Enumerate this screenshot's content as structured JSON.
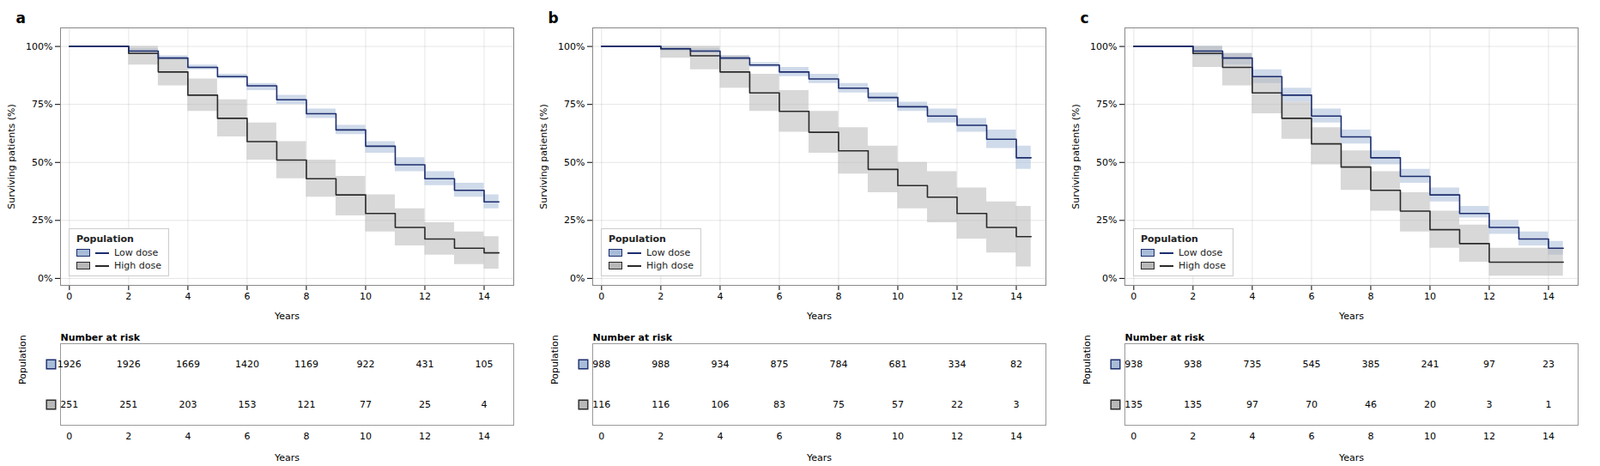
{
  "chart_data": [
    {
      "type": "line",
      "title": "a",
      "xlabel": "Years",
      "ylabel": "Surviving patients (%)",
      "x": [
        0,
        2,
        2,
        3,
        4,
        5,
        6,
        7,
        8,
        9,
        10,
        11,
        12,
        13,
        14,
        14.5
      ],
      "xlim": [
        -0.3,
        15.0
      ],
      "ylim": [
        -3,
        108
      ],
      "xticks": [
        0,
        2,
        4,
        6,
        8,
        10,
        12,
        14
      ],
      "yticks": [
        {
          "value": 0,
          "label": "0%"
        },
        {
          "value": 25,
          "label": "25%"
        },
        {
          "value": 50,
          "label": "50%"
        },
        {
          "value": 75,
          "label": "75%"
        },
        {
          "value": 100,
          "label": "100%"
        }
      ],
      "grid": true,
      "legend": "lower left",
      "legend_title": "Population",
      "series": [
        {
          "name": "Low dose",
          "color": "#1c2d6e",
          "ci_color": "#a8bcd8",
          "values": [
            100,
            100,
            98,
            95,
            91,
            87,
            83,
            77,
            71,
            64,
            57,
            49,
            43,
            38,
            33,
            33
          ],
          "ci_low": [
            100,
            100,
            97,
            94,
            90,
            86,
            81,
            75,
            69,
            62,
            54,
            46,
            40,
            35,
            30,
            30
          ],
          "ci_high": [
            100,
            100,
            99,
            96,
            92,
            88,
            84,
            79,
            73,
            66,
            59,
            52,
            46,
            41,
            36,
            36
          ],
          "at_risk": [
            1926,
            1926,
            1669,
            1420,
            1169,
            922,
            431,
            105
          ]
        },
        {
          "name": "High dose",
          "color": "#2a2a2a",
          "ci_color": "#b8b8b8",
          "values": [
            100,
            100,
            97,
            89,
            79,
            69,
            59,
            51,
            43,
            36,
            28,
            22,
            17,
            13,
            11,
            11
          ],
          "ci_low": [
            100,
            100,
            92,
            83,
            72,
            61,
            51,
            43,
            35,
            27,
            20,
            14,
            10,
            6,
            4,
            4
          ],
          "ci_high": [
            100,
            100,
            100,
            95,
            86,
            77,
            67,
            59,
            51,
            44,
            36,
            30,
            24,
            20,
            18,
            18
          ],
          "at_risk": [
            251,
            251,
            203,
            153,
            121,
            77,
            25,
            4
          ]
        }
      ],
      "at_risk_x": [
        0,
        2,
        4,
        6,
        8,
        10,
        12,
        14
      ],
      "at_risk_title": "Number at risk",
      "at_risk_label": "Population"
    },
    {
      "type": "line",
      "title": "b",
      "xlabel": "Years",
      "ylabel": "Surviving patients (%)",
      "x": [
        0,
        2,
        2,
        3,
        4,
        5,
        6,
        7,
        8,
        9,
        10,
        11,
        12,
        13,
        14,
        14.5
      ],
      "xlim": [
        -0.3,
        15.0
      ],
      "ylim": [
        -3,
        108
      ],
      "xticks": [
        0,
        2,
        4,
        6,
        8,
        10,
        12,
        14
      ],
      "yticks": [
        {
          "value": 0,
          "label": "0%"
        },
        {
          "value": 25,
          "label": "25%"
        },
        {
          "value": 50,
          "label": "50%"
        },
        {
          "value": 75,
          "label": "75%"
        },
        {
          "value": 100,
          "label": "100%"
        }
      ],
      "grid": true,
      "legend": "lower left",
      "legend_title": "Population",
      "series": [
        {
          "name": "Low dose",
          "color": "#1c2d6e",
          "ci_color": "#a8bcd8",
          "values": [
            100,
            100,
            99,
            98,
            95,
            92,
            89,
            86,
            82,
            78,
            74,
            70,
            66,
            60,
            52,
            52
          ],
          "ci_low": [
            100,
            100,
            98,
            97,
            94,
            91,
            87,
            84,
            80,
            76,
            72,
            67,
            63,
            56,
            47,
            47
          ],
          "ci_high": [
            100,
            100,
            100,
            99,
            96,
            93,
            91,
            88,
            84,
            80,
            76,
            73,
            69,
            64,
            57,
            57
          ],
          "at_risk": [
            988,
            988,
            934,
            875,
            784,
            681,
            334,
            82
          ]
        },
        {
          "name": "High dose",
          "color": "#2a2a2a",
          "ci_color": "#b8b8b8",
          "values": [
            100,
            100,
            99,
            96,
            89,
            80,
            72,
            63,
            55,
            47,
            40,
            35,
            28,
            22,
            18,
            18
          ],
          "ci_low": [
            100,
            100,
            95,
            90,
            82,
            72,
            63,
            54,
            45,
            37,
            30,
            24,
            17,
            11,
            5,
            5
          ],
          "ci_high": [
            100,
            100,
            100,
            100,
            96,
            88,
            81,
            72,
            65,
            57,
            50,
            46,
            39,
            33,
            31,
            31
          ],
          "at_risk": [
            116,
            116,
            106,
            83,
            75,
            57,
            22,
            3
          ]
        }
      ],
      "at_risk_x": [
        0,
        2,
        4,
        6,
        8,
        10,
        12,
        14
      ],
      "at_risk_title": "Number at risk",
      "at_risk_label": "Population"
    },
    {
      "type": "line",
      "title": "c",
      "xlabel": "Years",
      "ylabel": "Surviving patients (%)",
      "x": [
        0,
        2,
        2,
        3,
        4,
        5,
        6,
        7,
        8,
        9,
        10,
        11,
        12,
        13,
        14,
        14.5
      ],
      "xlim": [
        -0.3,
        15.0
      ],
      "ylim": [
        -3,
        108
      ],
      "xticks": [
        0,
        2,
        4,
        6,
        8,
        10,
        12,
        14
      ],
      "yticks": [
        {
          "value": 0,
          "label": "0%"
        },
        {
          "value": 25,
          "label": "25%"
        },
        {
          "value": 50,
          "label": "50%"
        },
        {
          "value": 75,
          "label": "75%"
        },
        {
          "value": 100,
          "label": "100%"
        }
      ],
      "grid": true,
      "legend": "lower left",
      "legend_title": "Population",
      "series": [
        {
          "name": "Low dose",
          "color": "#1c2d6e",
          "ci_color": "#a8bcd8",
          "values": [
            100,
            100,
            98,
            95,
            87,
            79,
            70,
            61,
            52,
            44,
            36,
            28,
            22,
            17,
            13,
            13
          ],
          "ci_low": [
            100,
            100,
            96,
            92,
            84,
            76,
            67,
            58,
            49,
            41,
            33,
            26,
            19,
            14,
            10,
            10
          ],
          "ci_high": [
            100,
            100,
            100,
            97,
            90,
            82,
            73,
            64,
            55,
            47,
            39,
            31,
            25,
            20,
            16,
            16
          ],
          "at_risk": [
            938,
            938,
            735,
            545,
            385,
            241,
            97,
            23
          ]
        },
        {
          "name": "High dose",
          "color": "#2a2a2a",
          "ci_color": "#b8b8b8",
          "values": [
            100,
            100,
            97,
            91,
            80,
            69,
            58,
            48,
            38,
            29,
            21,
            15,
            7,
            7,
            7,
            7
          ],
          "ci_low": [
            100,
            100,
            91,
            83,
            71,
            60,
            49,
            38,
            29,
            20,
            13,
            7,
            1,
            1,
            1,
            1
          ],
          "ci_high": [
            100,
            100,
            100,
            97,
            87,
            76,
            65,
            55,
            46,
            37,
            29,
            23,
            13,
            13,
            13,
            13
          ],
          "at_risk": [
            135,
            135,
            97,
            70,
            46,
            20,
            3,
            1
          ]
        }
      ],
      "at_risk_x": [
        0,
        2,
        4,
        6,
        8,
        10,
        12,
        14
      ],
      "at_risk_title": "Number at risk",
      "at_risk_label": "Population"
    }
  ]
}
